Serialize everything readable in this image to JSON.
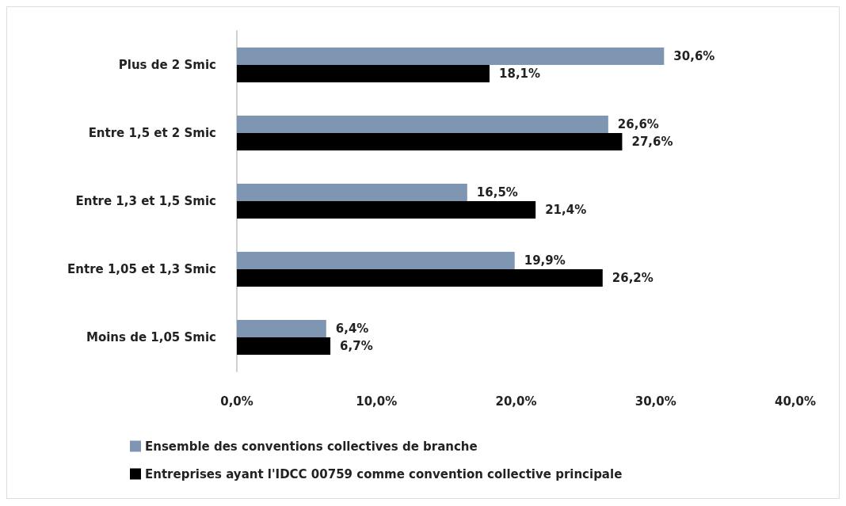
{
  "chart_data": {
    "type": "bar",
    "orientation": "horizontal",
    "categories": [
      "Plus de 2 Smic",
      "Entre 1,5 et 2 Smic",
      "Entre 1,3 et 1,5 Smic",
      "Entre 1,05 et 1,3 Smic",
      "Moins de 1,05 Smic"
    ],
    "series": [
      {
        "name": "Ensemble des conventions collectives de branche",
        "color": "#7f96b2",
        "values": [
          30.6,
          26.6,
          16.5,
          19.9,
          6.4
        ],
        "value_labels": [
          "30,6%",
          "26,6%",
          "16,5%",
          "19,9%",
          "6,4%"
        ]
      },
      {
        "name": "Entreprises ayant l'IDCC 00759 comme convention collective principale",
        "color": "#000000",
        "values": [
          18.1,
          27.6,
          21.4,
          26.2,
          6.7
        ],
        "value_labels": [
          "18,1%",
          "27,6%",
          "21,4%",
          "26,2%",
          "6,7%"
        ]
      }
    ],
    "xlim": [
      0,
      40
    ],
    "xticks": [
      {
        "value": 0,
        "label": "0,0%"
      },
      {
        "value": 10,
        "label": "10,0%"
      },
      {
        "value": 20,
        "label": "20,0%"
      },
      {
        "value": 30,
        "label": "30,0%"
      },
      {
        "value": 40,
        "label": "40,0%"
      }
    ],
    "grid": false,
    "legend": "bottom"
  }
}
